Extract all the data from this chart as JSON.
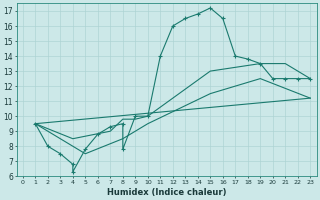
{
  "xlabel": "Humidex (Indice chaleur)",
  "background_color": "#cce8e8",
  "line_color": "#1a7a6e",
  "xlim": [
    -0.5,
    23.5
  ],
  "ylim": [
    6,
    17.5
  ],
  "xticks": [
    0,
    1,
    2,
    3,
    4,
    5,
    6,
    7,
    8,
    9,
    10,
    11,
    12,
    13,
    14,
    15,
    16,
    17,
    18,
    19,
    20,
    21,
    22,
    23
  ],
  "yticks": [
    6,
    7,
    8,
    9,
    10,
    11,
    12,
    13,
    14,
    15,
    16,
    17
  ],
  "series1_x": [
    1,
    2,
    3,
    4,
    4,
    5,
    6,
    7,
    8,
    8,
    9,
    10,
    11,
    12,
    13,
    14,
    15,
    16,
    17,
    18,
    19,
    20,
    21,
    22,
    23
  ],
  "series1_y": [
    9.5,
    8.0,
    7.5,
    6.8,
    6.3,
    7.8,
    8.8,
    9.3,
    9.5,
    7.8,
    10.0,
    10.0,
    14.0,
    16.0,
    16.5,
    16.8,
    17.2,
    16.5,
    14.0,
    13.8,
    13.5,
    12.5,
    12.5,
    12.5,
    12.5
  ],
  "series2_x": [
    1,
    4,
    7,
    8,
    9,
    10,
    15,
    19,
    21,
    23
  ],
  "series2_y": [
    9.5,
    8.5,
    9.0,
    9.8,
    9.8,
    10.0,
    13.0,
    13.5,
    13.5,
    12.5
  ],
  "series3_x": [
    1,
    5,
    8,
    10,
    15,
    19,
    23
  ],
  "series3_y": [
    9.5,
    7.5,
    8.5,
    9.5,
    11.5,
    12.5,
    11.2
  ],
  "series4_x": [
    1,
    23
  ],
  "series4_y": [
    9.5,
    11.2
  ],
  "grid_color": "#aed4d4"
}
